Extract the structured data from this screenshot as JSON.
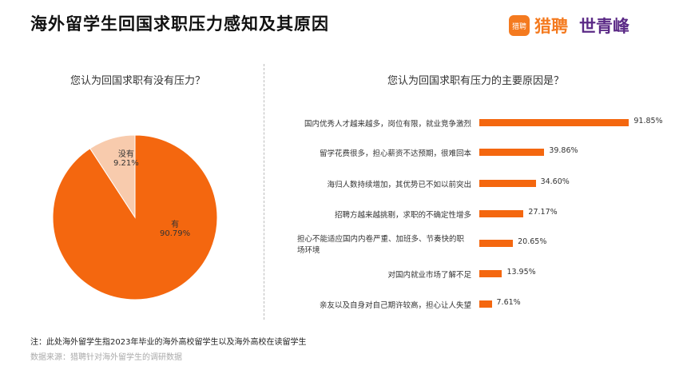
{
  "title": "海外留学生回国求职压力感知及其原因",
  "logo": {
    "icon_text": "猎聘",
    "brand1": "猎聘",
    "brand2": "世青峰"
  },
  "note": "注：此处海外留学生指2023年毕业的海外高校留学生以及海外高校在读留学生",
  "source": "数据来源：猎聘针对海外留学生的调研数据",
  "colors": {
    "primary": "#F4670F",
    "secondary": "#F8CBAD"
  },
  "chart_data": [
    {
      "type": "pie",
      "title": "您认为回国求职有没有压力？",
      "slices": [
        {
          "label": "有",
          "value": 90.79,
          "display": "90.79%"
        },
        {
          "label": "没有",
          "value": 9.21,
          "display": "9.21%"
        }
      ]
    },
    {
      "type": "bar",
      "orientation": "horizontal",
      "title": "您认为回国求职有压力的主要原因是？",
      "categories": [
        "国内优秀人才越来越多，岗位有限，就业竞争激烈",
        "留学花费很多，担心薪资不达预期，很难回本",
        "海归人数持续增加，其优势已不如以前突出",
        "招聘方越来越挑剔，求职的不确定性增多",
        "担心不能适应国内内卷严重、加班多、节奏快的职场环境",
        "对国内就业市场了解不足",
        "亲友以及自身对自己期许较高，担心让人失望"
      ],
      "values": [
        91.85,
        39.86,
        34.6,
        27.17,
        20.65,
        13.95,
        7.61
      ],
      "labels": [
        "91.85%",
        "39.86%",
        "34.60%",
        "27.17%",
        "20.65%",
        "13.95%",
        "7.61%"
      ]
    }
  ]
}
